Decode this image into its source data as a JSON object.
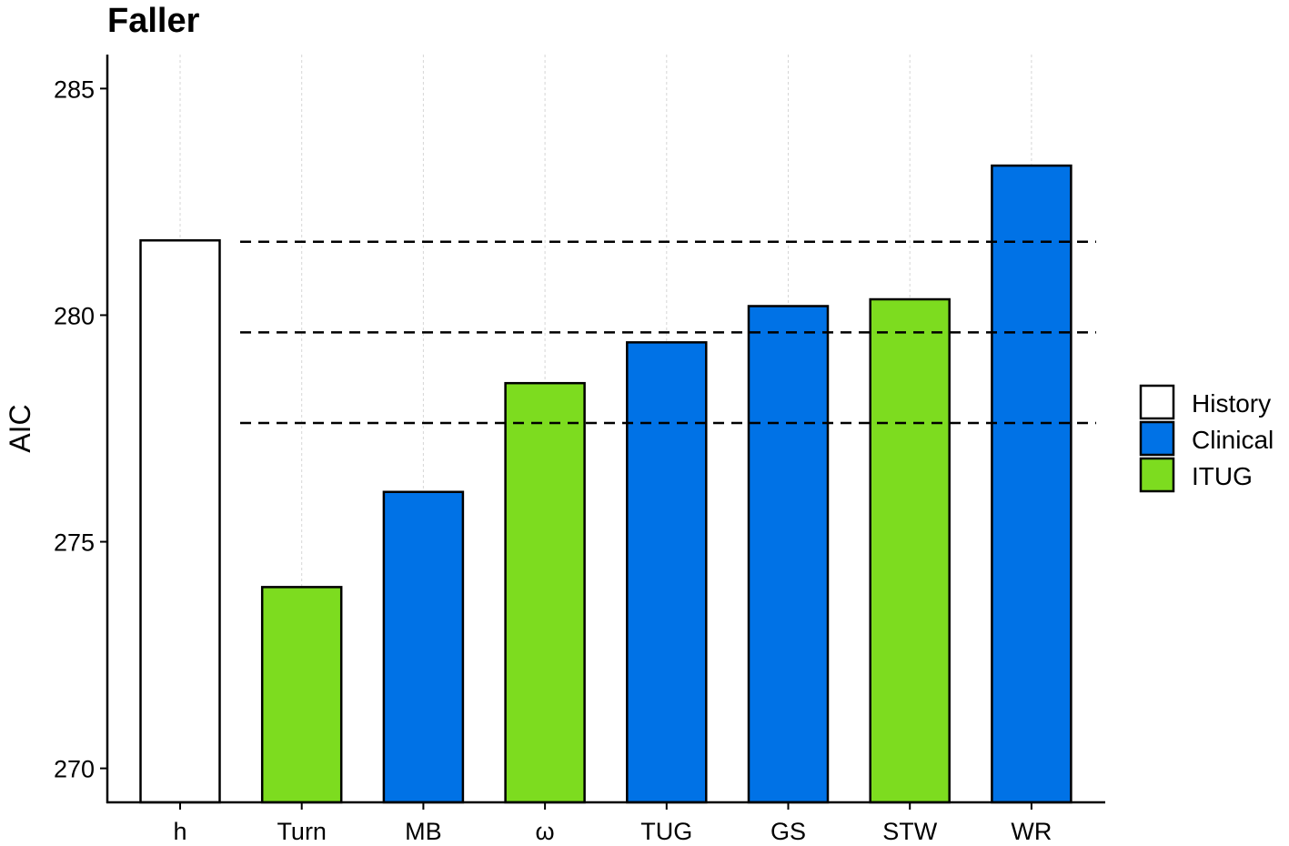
{
  "chart_data": {
    "type": "bar",
    "title": "Faller",
    "xlabel": "",
    "ylabel": "AIC",
    "ylim": [
      269.25,
      285.75
    ],
    "yticks": [
      270,
      275,
      280,
      285
    ],
    "categories": [
      "h",
      "Turn",
      "MB",
      "ω",
      "TUG",
      "GS",
      "STW",
      "WR"
    ],
    "values": [
      281.65,
      274.0,
      276.1,
      278.5,
      279.4,
      280.2,
      280.35,
      283.3
    ],
    "groups": [
      "History",
      "ITUG",
      "Clinical",
      "ITUG",
      "Clinical",
      "Clinical",
      "ITUG",
      "Clinical"
    ],
    "reference_lines": [
      281.62,
      279.62,
      277.62
    ],
    "grid": "vertical dotted at categories",
    "legend": {
      "position": "right",
      "entries": [
        {
          "name": "History",
          "color": "#ffffff"
        },
        {
          "name": "Clinical",
          "color": "#0072e6"
        },
        {
          "name": "ITUG",
          "color": "#7ddc1f"
        }
      ]
    }
  }
}
